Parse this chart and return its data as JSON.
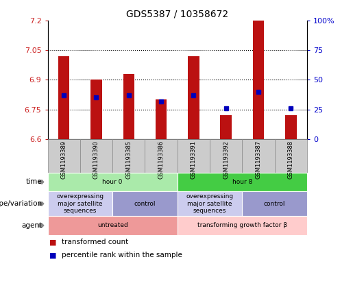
{
  "title": "GDS5387 / 10358672",
  "samples": [
    "GSM1193389",
    "GSM1193390",
    "GSM1193385",
    "GSM1193386",
    "GSM1193391",
    "GSM1193392",
    "GSM1193387",
    "GSM1193388"
  ],
  "bar_values": [
    7.02,
    6.9,
    6.93,
    6.8,
    7.02,
    6.72,
    7.2,
    6.72
  ],
  "bar_bottom": 6.6,
  "percentile_values": [
    6.82,
    6.81,
    6.82,
    6.79,
    6.82,
    6.755,
    6.84,
    6.755
  ],
  "ylim": [
    6.6,
    7.2
  ],
  "yticks_left": [
    6.6,
    6.75,
    6.9,
    7.05,
    7.2
  ],
  "yticks_right": [
    0,
    25,
    50,
    75,
    100
  ],
  "ytick_labels_left": [
    "6.6",
    "6.75",
    "6.9",
    "7.05",
    "7.2"
  ],
  "ytick_labels_right": [
    "0",
    "25",
    "50",
    "75",
    "100%"
  ],
  "dotted_lines": [
    7.05,
    6.9,
    6.75
  ],
  "bar_color": "#bb1111",
  "percentile_color": "#0000bb",
  "time_groups": [
    {
      "text": "hour 0",
      "span": [
        0,
        4
      ],
      "color": "#aaeaaa"
    },
    {
      "text": "hour 8",
      "span": [
        4,
        8
      ],
      "color": "#44cc44"
    }
  ],
  "genotype_groups": [
    {
      "text": "overexpressing\nmajor satellite\nsequences",
      "span": [
        0,
        2
      ],
      "color": "#ccccee"
    },
    {
      "text": "control",
      "span": [
        2,
        4
      ],
      "color": "#9999cc"
    },
    {
      "text": "overexpressing\nmajor satellite\nsequences",
      "span": [
        4,
        6
      ],
      "color": "#ccccee"
    },
    {
      "text": "control",
      "span": [
        6,
        8
      ],
      "color": "#9999cc"
    }
  ],
  "agent_groups": [
    {
      "text": "untreated",
      "span": [
        0,
        4
      ],
      "color": "#ee9999"
    },
    {
      "text": "transforming growth factor β",
      "span": [
        4,
        8
      ],
      "color": "#ffcccc"
    }
  ],
  "row_labels": [
    "time",
    "genotype/variation",
    "agent"
  ],
  "legend_items": [
    {
      "color": "#bb1111",
      "label": "transformed count"
    },
    {
      "color": "#0000bb",
      "label": "percentile rank within the sample"
    }
  ],
  "tick_label_color_left": "#cc2222",
  "tick_label_color_right": "#0000cc",
  "sample_box_color": "#cccccc",
  "sample_box_edgecolor": "#888888"
}
